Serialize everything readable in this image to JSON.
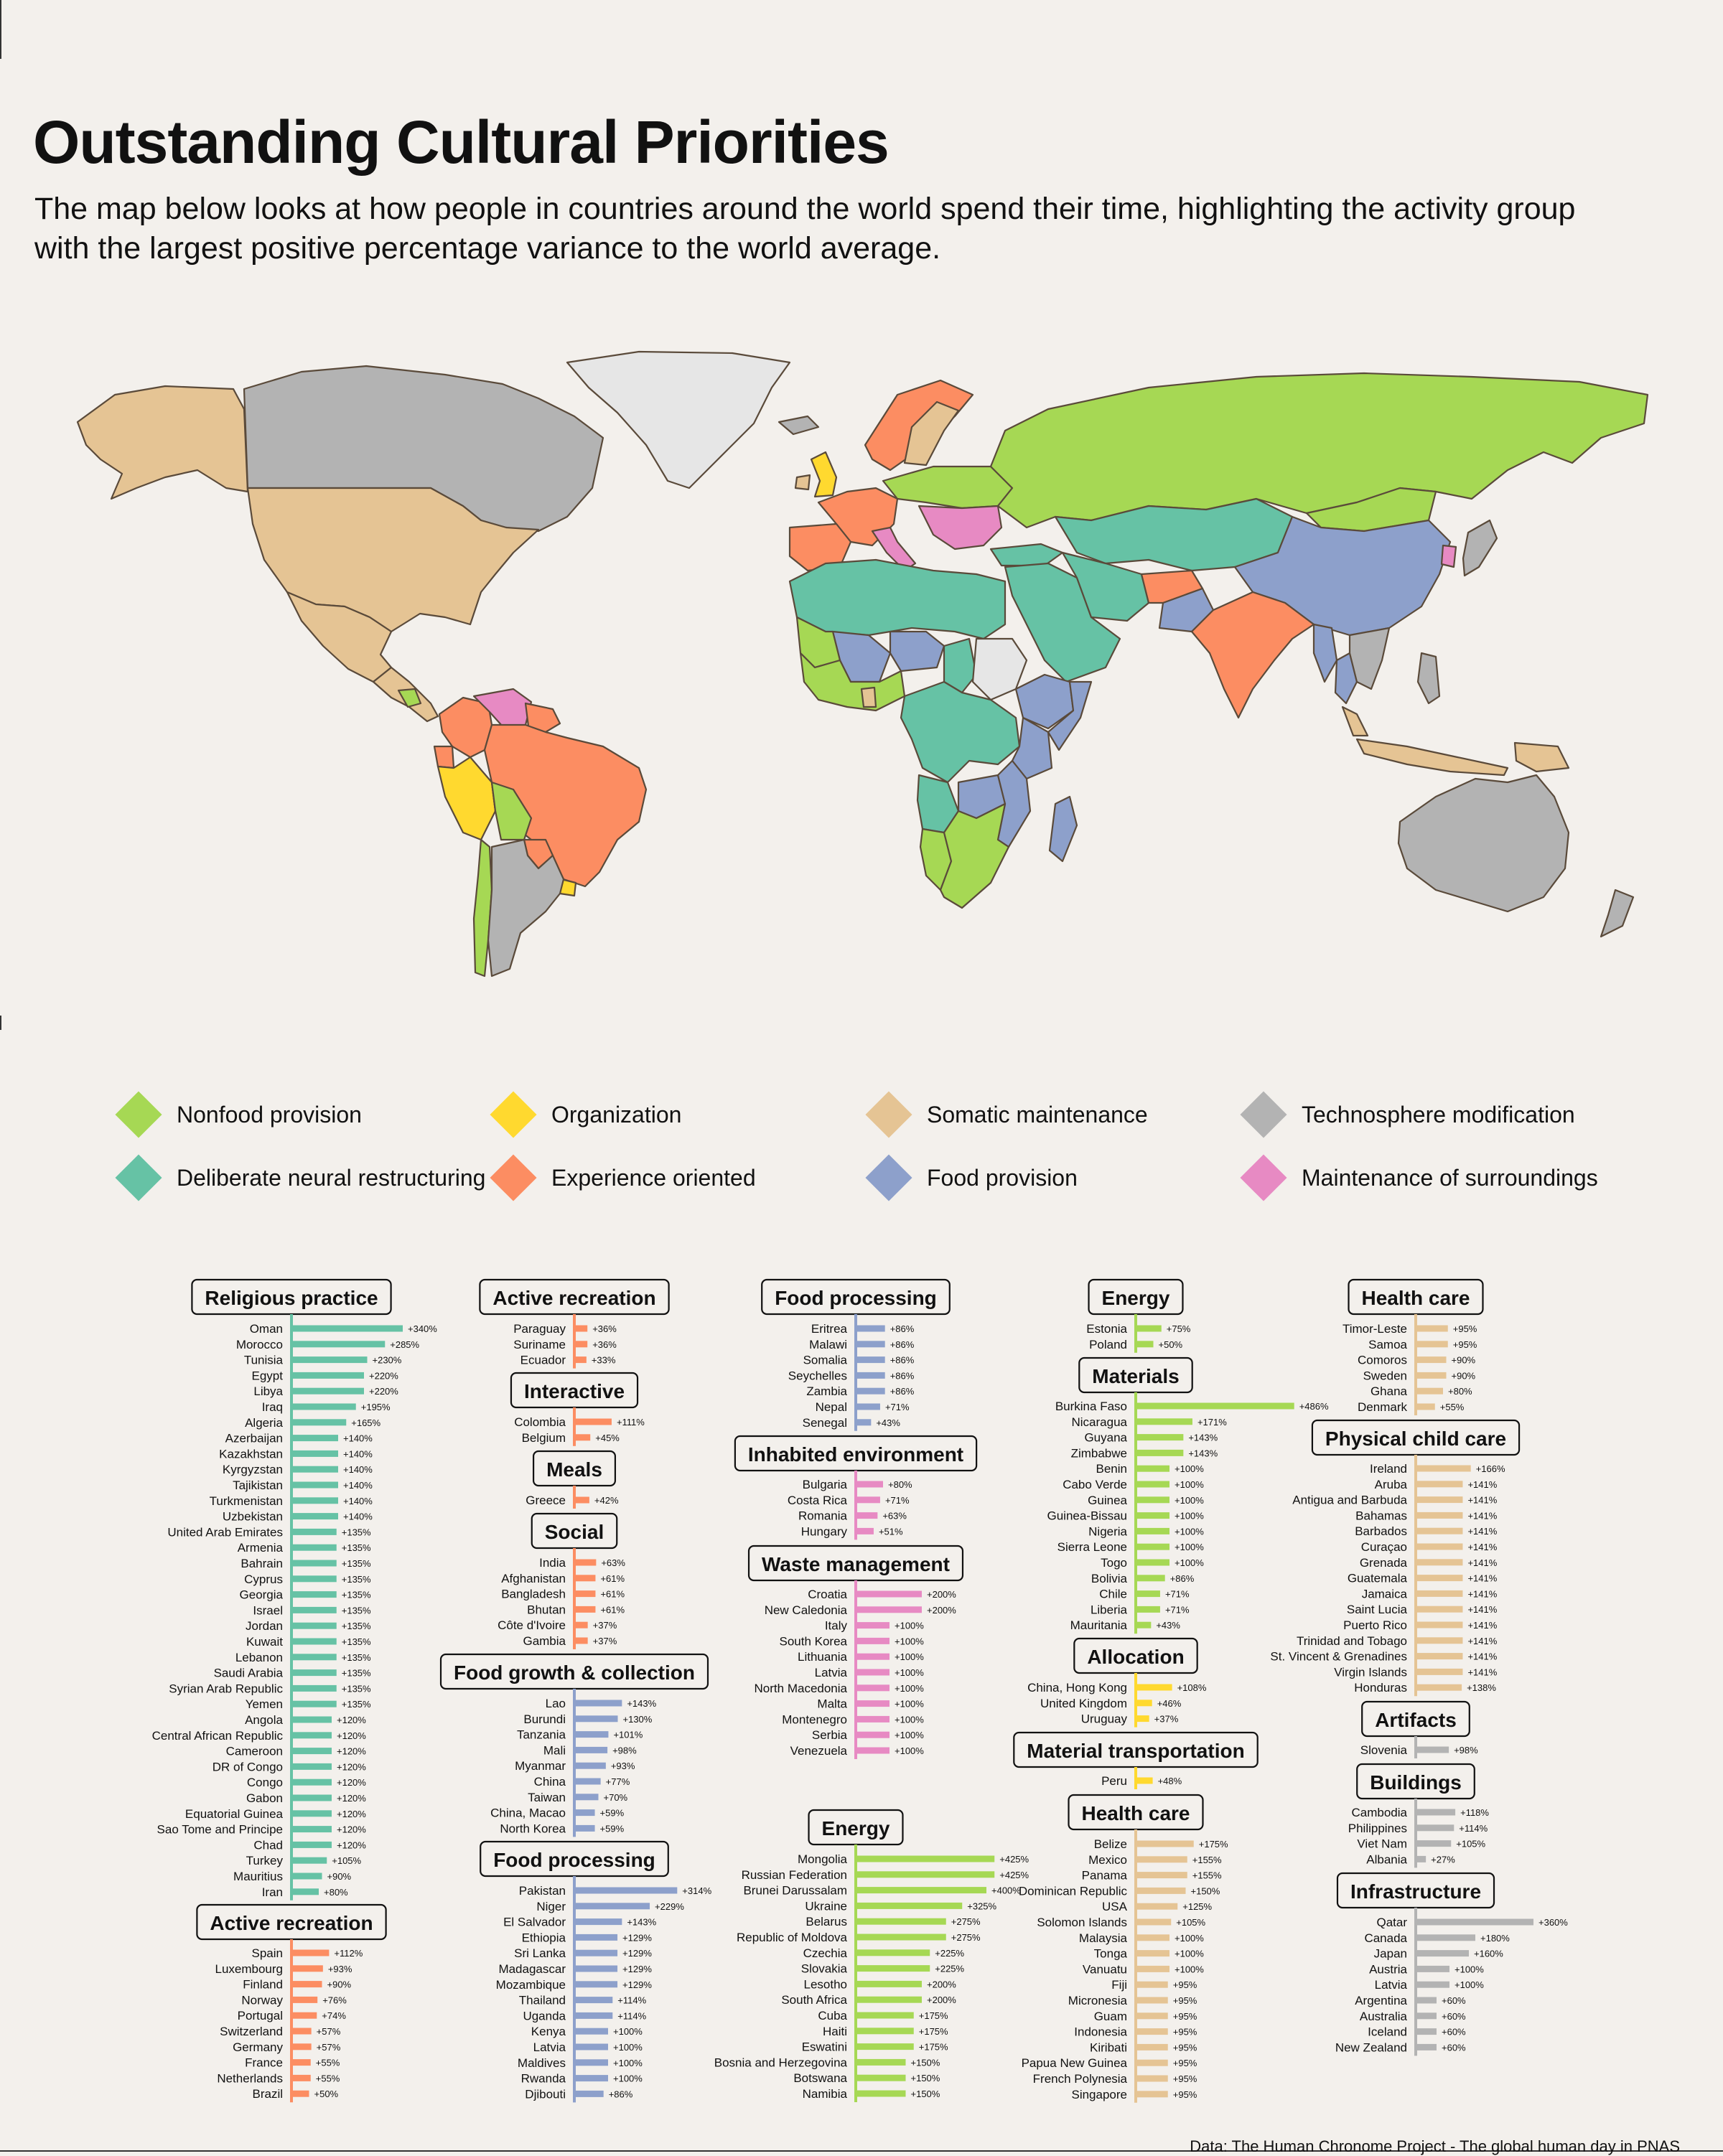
{
  "title": "Outstanding Cultural Priorities",
  "subtitle": "The map below looks at how people in countries around the world spend their time, highlighting the activity group with the largest positive percentage variance to the world average.",
  "source": "Data: The Human Chronome Project - The global human day in PNAS",
  "colors": {
    "Nonfood provision": "#a6d854",
    "Organization": "#ffd92f",
    "Somatic maintenance": "#e5c494",
    "Technosphere modification": "#b3b3b3",
    "Deliberate neural restructuring": "#66c2a5",
    "Experience oriented": "#fc8d62",
    "Food provision": "#8da0cb",
    "Maintenance of surroundings": "#e78ac3",
    "No data": "#e6e6e6"
  },
  "legend": [
    {
      "label": "Nonfood provision",
      "group": "Nonfood provision"
    },
    {
      "label": "Organization",
      "group": "Organization"
    },
    {
      "label": "Somatic maintenance",
      "group": "Somatic maintenance"
    },
    {
      "label": "Technosphere modification",
      "group": "Technosphere modification"
    },
    {
      "label": "Deliberate neural restructuring",
      "group": "Deliberate neural restructuring"
    },
    {
      "label": "Experience oriented",
      "group": "Experience oriented"
    },
    {
      "label": "Food provision",
      "group": "Food provision"
    },
    {
      "label": "Maintenance of surroundings",
      "group": "Maintenance of surroundings"
    }
  ],
  "map_regions": [
    {
      "name": "Alaska",
      "group": "Somatic maintenance"
    },
    {
      "name": "Canada",
      "group": "Technosphere modification"
    },
    {
      "name": "Greenland",
      "group": "No data"
    },
    {
      "name": "United States",
      "group": "Somatic maintenance"
    },
    {
      "name": "Mexico",
      "group": "Somatic maintenance"
    },
    {
      "name": "Central America",
      "group": "Somatic maintenance"
    },
    {
      "name": "Nicaragua",
      "group": "Nonfood provision"
    },
    {
      "name": "Colombia",
      "group": "Experience oriented"
    },
    {
      "name": "Venezuela",
      "group": "Maintenance of surroundings"
    },
    {
      "name": "Guianas",
      "group": "Experience oriented"
    },
    {
      "name": "Ecuador",
      "group": "Experience oriented"
    },
    {
      "name": "Peru",
      "group": "Organization"
    },
    {
      "name": "Brazil",
      "group": "Experience oriented"
    },
    {
      "name": "Bolivia",
      "group": "Nonfood provision"
    },
    {
      "name": "Paraguay",
      "group": "Experience oriented"
    },
    {
      "name": "Uruguay",
      "group": "Organization"
    },
    {
      "name": "Chile",
      "group": "Nonfood provision"
    },
    {
      "name": "Argentina",
      "group": "Technosphere modification"
    },
    {
      "name": "Iceland",
      "group": "Technosphere modification"
    },
    {
      "name": "Ireland",
      "group": "Somatic maintenance"
    },
    {
      "name": "United Kingdom",
      "group": "Organization"
    },
    {
      "name": "Scandinavia",
      "group": "Experience oriented"
    },
    {
      "name": "Sweden",
      "group": "Somatic maintenance"
    },
    {
      "name": "Western Europe",
      "group": "Experience oriented"
    },
    {
      "name": "Central Europe",
      "group": "Nonfood provision"
    },
    {
      "name": "Balkans",
      "group": "Maintenance of surroundings"
    },
    {
      "name": "Spain",
      "group": "Experience oriented"
    },
    {
      "name": "Italy",
      "group": "Maintenance of surroundings"
    },
    {
      "name": "Russia",
      "group": "Nonfood provision"
    },
    {
      "name": "Kazakhstan",
      "group": "Deliberate neural restructuring"
    },
    {
      "name": "Mongolia",
      "group": "Nonfood provision"
    },
    {
      "name": "China",
      "group": "Food provision"
    },
    {
      "name": "Korea",
      "group": "Maintenance of surroundings"
    },
    {
      "name": "Japan",
      "group": "Technosphere modification"
    },
    {
      "name": "Turkey",
      "group": "Deliberate neural restructuring"
    },
    {
      "name": "Middle East",
      "group": "Deliberate neural restructuring"
    },
    {
      "name": "Iran",
      "group": "Deliberate neural restructuring"
    },
    {
      "name": "Afghanistan",
      "group": "Experience oriented"
    },
    {
      "name": "Pakistan",
      "group": "Food provision"
    },
    {
      "name": "India",
      "group": "Experience oriented"
    },
    {
      "name": "Myanmar",
      "group": "Food provision"
    },
    {
      "name": "Thailand",
      "group": "Food provision"
    },
    {
      "name": "Indochina",
      "group": "Technosphere modification"
    },
    {
      "name": "Malaysia",
      "group": "Somatic maintenance"
    },
    {
      "name": "Indonesia",
      "group": "Somatic maintenance"
    },
    {
      "name": "Philippines",
      "group": "Technosphere modification"
    },
    {
      "name": "Papua New Guinea",
      "group": "Somatic maintenance"
    },
    {
      "name": "Australia",
      "group": "Technosphere modification"
    },
    {
      "name": "New Zealand",
      "group": "Technosphere modification"
    },
    {
      "name": "North Africa",
      "group": "Deliberate neural restructuring"
    },
    {
      "name": "Mali",
      "group": "Food provision"
    },
    {
      "name": "Mauritania",
      "group": "Nonfood provision"
    },
    {
      "name": "Niger",
      "group": "Food provision"
    },
    {
      "name": "Chad",
      "group": "Deliberate neural restructuring"
    },
    {
      "name": "Sudan",
      "group": "No data"
    },
    {
      "name": "Ethiopia",
      "group": "Food provision"
    },
    {
      "name": "Somalia",
      "group": "Food provision"
    },
    {
      "name": "West Africa",
      "group": "Nonfood provision"
    },
    {
      "name": "Ghana",
      "group": "Somatic maintenance"
    },
    {
      "name": "Central Africa",
      "group": "Deliberate neural restructuring"
    },
    {
      "name": "Tanzania",
      "group": "Food provision"
    },
    {
      "name": "Angola",
      "group": "Deliberate neural restructuring"
    },
    {
      "name": "Zambia",
      "group": "Food provision"
    },
    {
      "name": "Mozambique",
      "group": "Food provision"
    },
    {
      "name": "Namibia",
      "group": "Nonfood provision"
    },
    {
      "name": "South Africa",
      "group": "Nonfood provision"
    },
    {
      "name": "Madagascar",
      "group": "Food provision"
    }
  ],
  "chart_data": [
    {
      "type": "bar",
      "title": "Religious practice",
      "group": "Deliberate neural restructuring",
      "categories": [
        "Oman",
        "Morocco",
        "Tunisia",
        "Egypt",
        "Libya",
        "Iraq",
        "Algeria",
        "Azerbaijan",
        "Kazakhstan",
        "Kyrgyzstan",
        "Tajikistan",
        "Turkmenistan",
        "Uzbekistan",
        "United Arab Emirates",
        "Armenia",
        "Bahrain",
        "Cyprus",
        "Georgia",
        "Israel",
        "Jordan",
        "Kuwait",
        "Lebanon",
        "Saudi Arabia",
        "Syrian Arab Republic",
        "Yemen",
        "Angola",
        "Central African Republic",
        "Cameroon",
        "DR of Congo",
        "Congo",
        "Gabon",
        "Equatorial Guinea",
        "Sao Tome and Principe",
        "Chad",
        "Turkey",
        "Mauritius",
        "Iran"
      ],
      "values": [
        340,
        285,
        230,
        220,
        220,
        195,
        165,
        140,
        140,
        140,
        140,
        140,
        140,
        135,
        135,
        135,
        135,
        135,
        135,
        135,
        135,
        135,
        135,
        135,
        135,
        120,
        120,
        120,
        120,
        120,
        120,
        120,
        120,
        120,
        105,
        90,
        80
      ]
    },
    {
      "type": "bar",
      "title": "Active recreation",
      "group": "Experience oriented",
      "categories": [
        "Spain",
        "Luxembourg",
        "Finland",
        "Norway",
        "Portugal",
        "Switzerland",
        "Germany",
        "France",
        "Netherlands",
        "Brazil"
      ],
      "values": [
        112,
        93,
        90,
        76,
        74,
        57,
        57,
        55,
        55,
        50
      ]
    },
    {
      "type": "bar",
      "title": "Active recreation",
      "group": "Experience oriented",
      "categories": [
        "Paraguay",
        "Suriname",
        "Ecuador"
      ],
      "values": [
        36,
        36,
        33
      ]
    },
    {
      "type": "bar",
      "title": "Interactive",
      "group": "Experience oriented",
      "categories": [
        "Colombia",
        "Belgium"
      ],
      "values": [
        111,
        45
      ]
    },
    {
      "type": "bar",
      "title": "Meals",
      "group": "Experience oriented",
      "categories": [
        "Greece"
      ],
      "values": [
        42
      ]
    },
    {
      "type": "bar",
      "title": "Social",
      "group": "Experience oriented",
      "categories": [
        "India",
        "Afghanistan",
        "Bangladesh",
        "Bhutan",
        "Côte d'Ivoire",
        "Gambia"
      ],
      "values": [
        63,
        61,
        61,
        61,
        37,
        37
      ]
    },
    {
      "type": "bar",
      "title": "Food growth & collection",
      "group": "Food provision",
      "categories": [
        "Lao",
        "Burundi",
        "Tanzania",
        "Mali",
        "Myanmar",
        "China",
        "Taiwan",
        "China, Macao",
        "North Korea"
      ],
      "values": [
        143,
        130,
        101,
        98,
        93,
        77,
        70,
        59,
        59
      ]
    },
    {
      "type": "bar",
      "title": "Food processing",
      "group": "Food provision",
      "categories": [
        "Pakistan",
        "Niger",
        "El Salvador",
        "Ethiopia",
        "Sri Lanka",
        "Madagascar",
        "Mozambique",
        "Thailand",
        "Uganda",
        "Kenya",
        "Latvia",
        "Maldives",
        "Rwanda",
        "Djibouti"
      ],
      "values": [
        314,
        229,
        143,
        129,
        129,
        129,
        129,
        114,
        114,
        100,
        100,
        100,
        100,
        86
      ]
    },
    {
      "type": "bar",
      "title": "Food processing",
      "group": "Food provision",
      "categories": [
        "Eritrea",
        "Malawi",
        "Somalia",
        "Seychelles",
        "Zambia",
        "Nepal",
        "Senegal"
      ],
      "values": [
        86,
        86,
        86,
        86,
        86,
        71,
        43
      ]
    },
    {
      "type": "bar",
      "title": "Inhabited environment",
      "group": "Maintenance of surroundings",
      "categories": [
        "Bulgaria",
        "Costa Rica",
        "Romania",
        "Hungary"
      ],
      "values": [
        80,
        71,
        63,
        51
      ]
    },
    {
      "type": "bar",
      "title": "Waste management",
      "group": "Maintenance of surroundings",
      "categories": [
        "Croatia",
        "New Caledonia",
        "Italy",
        "South Korea",
        "Lithuania",
        "Latvia",
        "North Macedonia",
        "Malta",
        "Montenegro",
        "Serbia",
        "Venezuela"
      ],
      "values": [
        200,
        200,
        100,
        100,
        100,
        100,
        100,
        100,
        100,
        100,
        100
      ]
    },
    {
      "type": "bar",
      "title": "Energy",
      "group": "Nonfood provision",
      "categories": [
        "Mongolia",
        "Russian Federation",
        "Brunei Darussalam",
        "Ukraine",
        "Belarus",
        "Republic of Moldova",
        "Czechia",
        "Slovakia",
        "Lesotho",
        "South Africa",
        "Cuba",
        "Haiti",
        "Eswatini",
        "Bosnia and Herzegovina",
        "Botswana",
        "Namibia"
      ],
      "values": [
        425,
        425,
        400,
        325,
        275,
        275,
        225,
        225,
        200,
        200,
        175,
        175,
        175,
        150,
        150,
        150
      ]
    },
    {
      "type": "bar",
      "title": "Energy",
      "group": "Nonfood provision",
      "categories": [
        "Estonia",
        "Poland"
      ],
      "values": [
        75,
        50
      ]
    },
    {
      "type": "bar",
      "title": "Materials",
      "group": "Nonfood provision",
      "categories": [
        "Burkina Faso",
        "Nicaragua",
        "Guyana",
        "Zimbabwe",
        "Benin",
        "Cabo Verde",
        "Guinea",
        "Guinea-Bissau",
        "Nigeria",
        "Sierra Leone",
        "Togo",
        "Bolivia",
        "Chile",
        "Liberia",
        "Mauritania"
      ],
      "values": [
        486,
        171,
        143,
        143,
        100,
        100,
        100,
        100,
        100,
        100,
        100,
        86,
        71,
        71,
        43
      ]
    },
    {
      "type": "bar",
      "title": "Allocation",
      "group": "Organization",
      "categories": [
        "China, Hong Kong",
        "United Kingdom",
        "Uruguay"
      ],
      "values": [
        108,
        46,
        37
      ]
    },
    {
      "type": "bar",
      "title": "Material transportation",
      "group": "Organization",
      "categories": [
        "Peru"
      ],
      "values": [
        48
      ]
    },
    {
      "type": "bar",
      "title": "Health care",
      "group": "Somatic maintenance",
      "categories": [
        "Belize",
        "Mexico",
        "Panama",
        "Dominican Republic",
        "USA",
        "Solomon Islands",
        "Malaysia",
        "Tonga",
        "Vanuatu",
        "Fiji",
        "Micronesia",
        "Guam",
        "Indonesia",
        "Kiribati",
        "Papua New Guinea",
        "French Polynesia",
        "Singapore"
      ],
      "values": [
        175,
        155,
        155,
        150,
        125,
        105,
        100,
        100,
        100,
        95,
        95,
        95,
        95,
        95,
        95,
        95,
        95
      ]
    },
    {
      "type": "bar",
      "title": "Health care",
      "group": "Somatic maintenance",
      "categories": [
        "Timor-Leste",
        "Samoa",
        "Comoros",
        "Sweden",
        "Ghana",
        "Denmark"
      ],
      "values": [
        95,
        95,
        90,
        90,
        80,
        55
      ]
    },
    {
      "type": "bar",
      "title": "Physical child care",
      "group": "Somatic maintenance",
      "categories": [
        "Ireland",
        "Aruba",
        "Antigua and Barbuda",
        "Bahamas",
        "Barbados",
        "Curaçao",
        "Grenada",
        "Guatemala",
        "Jamaica",
        "Saint Lucia",
        "Puerto Rico",
        "Trinidad and Tobago",
        "St. Vincent & Grenadines",
        "Virgin Islands",
        "Honduras"
      ],
      "values": [
        166,
        141,
        141,
        141,
        141,
        141,
        141,
        141,
        141,
        141,
        141,
        141,
        141,
        141,
        138
      ]
    },
    {
      "type": "bar",
      "title": "Artifacts",
      "group": "Technosphere modification",
      "categories": [
        "Slovenia"
      ],
      "values": [
        98
      ]
    },
    {
      "type": "bar",
      "title": "Buildings",
      "group": "Technosphere modification",
      "categories": [
        "Cambodia",
        "Philippines",
        "Viet Nam",
        "Albania"
      ],
      "values": [
        118,
        114,
        105,
        27
      ]
    },
    {
      "type": "bar",
      "title": "Infrastructure",
      "group": "Technosphere modification",
      "categories": [
        "Qatar",
        "Canada",
        "Japan",
        "Austria",
        "Latvia",
        "Argentina",
        "Australia",
        "Iceland",
        "New Zealand"
      ],
      "values": [
        360,
        180,
        160,
        100,
        100,
        60,
        60,
        60,
        60
      ]
    }
  ]
}
